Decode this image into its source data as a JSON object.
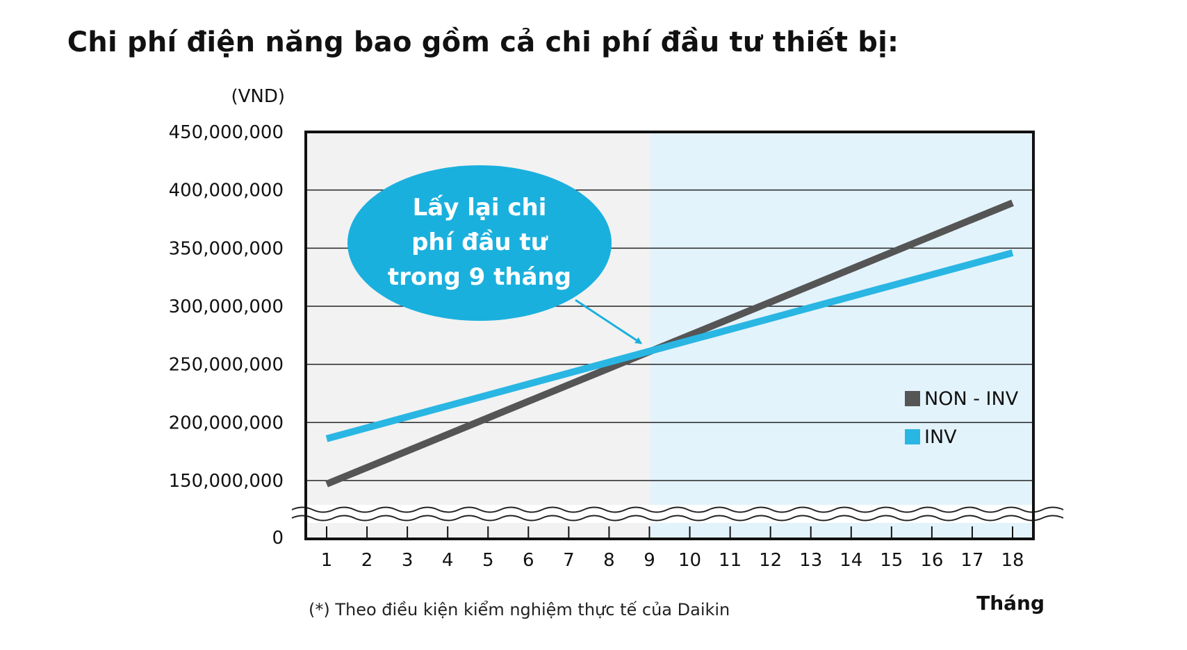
{
  "chart_data": {
    "type": "line",
    "title": "Chi phí điện năng bao gồm cả chi phí đầu tư thiết bị:",
    "ylabel": "(VND)",
    "xlabel": "Tháng",
    "x": [
      1,
      2,
      3,
      4,
      5,
      6,
      7,
      8,
      9,
      10,
      11,
      12,
      13,
      14,
      15,
      16,
      17,
      18
    ],
    "y_ticks": [
      0,
      150000000,
      200000000,
      250000000,
      300000000,
      350000000,
      400000000,
      450000000
    ],
    "y_tick_labels": [
      "0",
      "150,000,000",
      "200,000,000",
      "250,000,000",
      "300,000,000",
      "350,000,000",
      "400,000,000",
      "450,000,000"
    ],
    "ylim": [
      0,
      450000000
    ],
    "y_axis_break": true,
    "grid": true,
    "legend_position": "right",
    "shaded_regions": [
      {
        "x_from": 1,
        "x_to": 9,
        "color": "#f2f2f2"
      },
      {
        "x_from": 9,
        "x_to": 18,
        "color": "#e3f3fc"
      }
    ],
    "series": [
      {
        "name": "NON - INV",
        "color": "#555555",
        "start": [
          1,
          147000000
        ],
        "end": [
          18,
          389000000
        ]
      },
      {
        "name": "INV",
        "color": "#29b6e3",
        "start": [
          1,
          186000000
        ],
        "end": [
          18,
          346000000
        ]
      }
    ],
    "annotation": {
      "lines": [
        "Lấy lại chi",
        "phí đầu tư",
        "trong 9 tháng"
      ],
      "color": "#1ab0de",
      "points_to": [
        9,
        261000000
      ]
    }
  },
  "footnote": "(*) Theo điều kiện kiểm nghiệm thực tế của Daikin"
}
